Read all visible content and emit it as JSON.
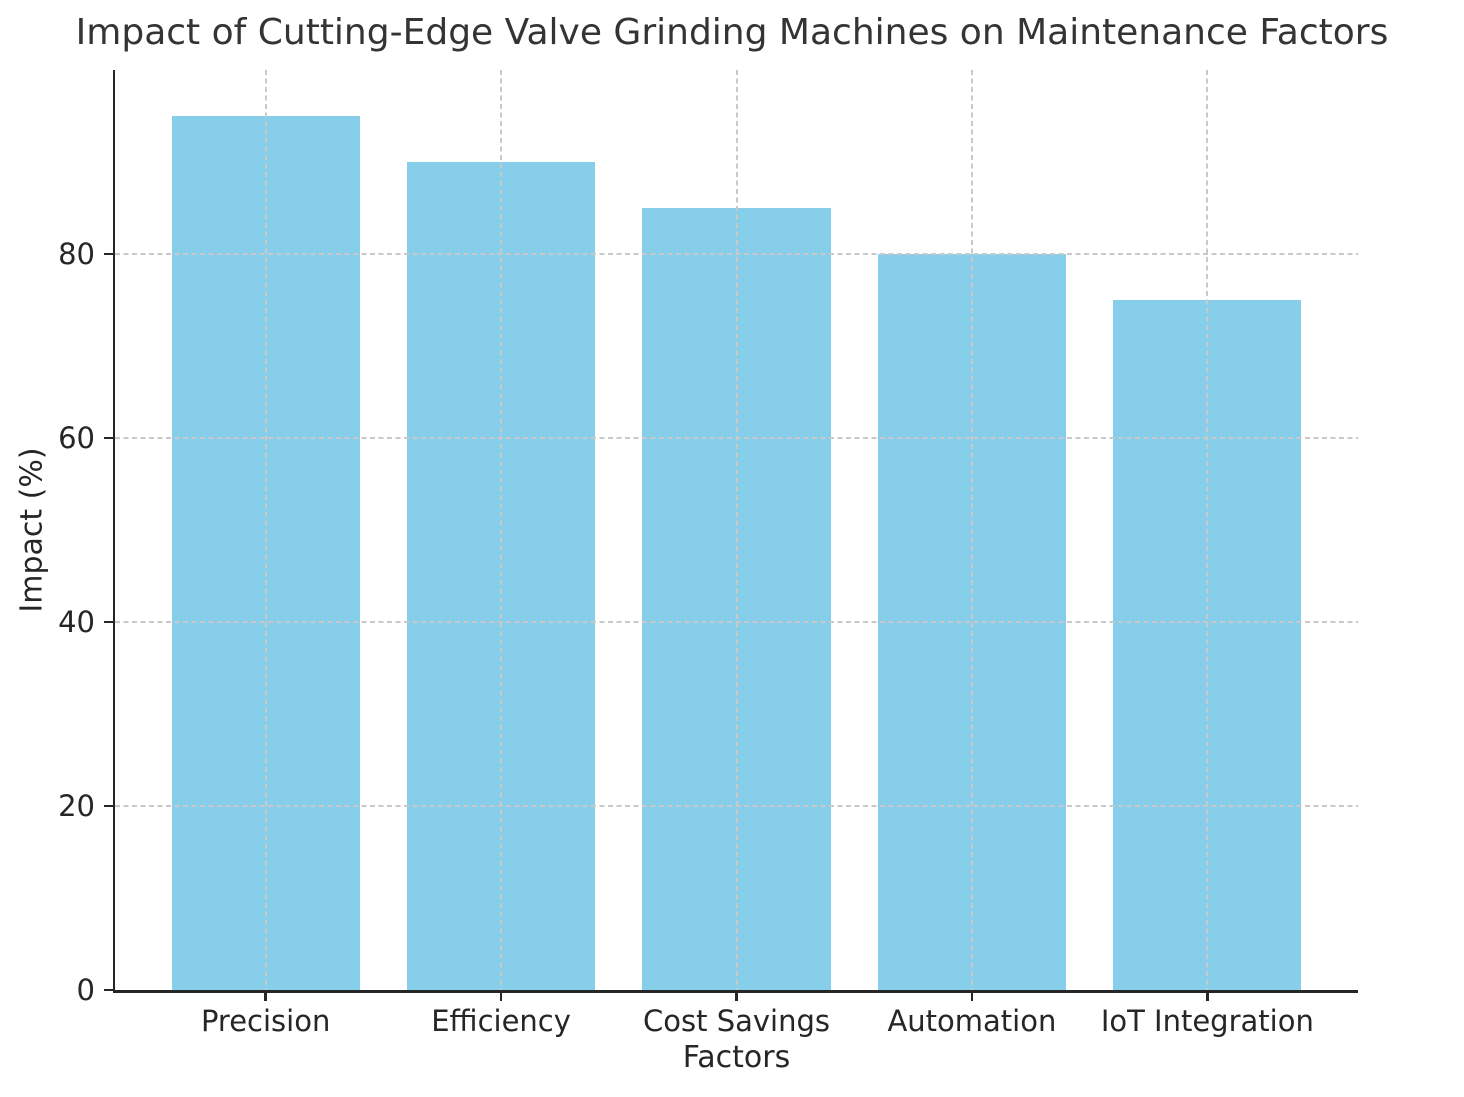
{
  "chart_data": {
    "type": "bar",
    "title": "Impact of Cutting-Edge Valve Grinding Machines on Maintenance Factors",
    "xlabel": "Factors",
    "ylabel": "Impact (%)",
    "categories": [
      "Precision",
      "Efficiency",
      "Cost Savings",
      "Automation",
      "IoT Integration"
    ],
    "values": [
      95,
      90,
      85,
      80,
      75
    ],
    "ylim": [
      0,
      100
    ],
    "yticks": [
      0,
      20,
      40,
      60,
      80
    ],
    "bar_color": "#87CEEB",
    "gridline_color": "#c9c9c9",
    "axis_color": "#262626",
    "grid": "dashed horizontal and vertical, drawn above bars",
    "legend": "none"
  }
}
